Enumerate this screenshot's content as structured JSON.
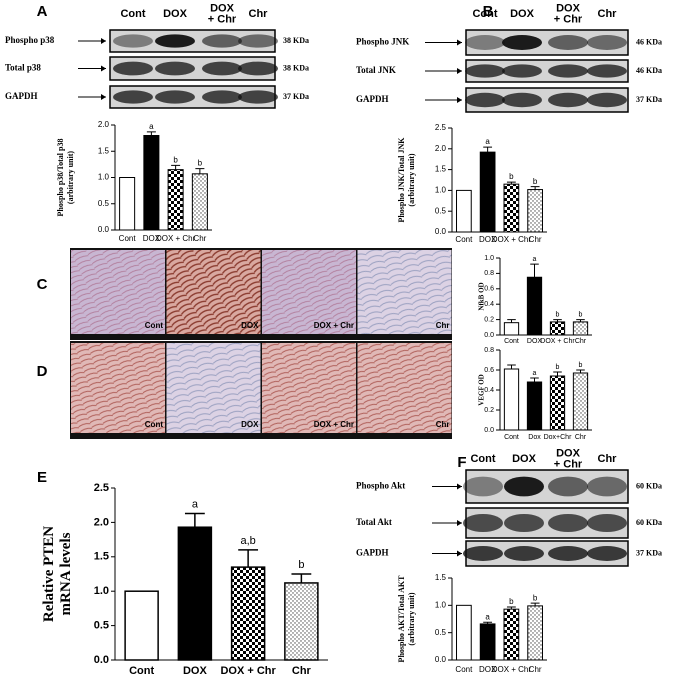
{
  "panel_letters": [
    "A",
    "B",
    "C",
    "D",
    "E",
    "F"
  ],
  "blots": [
    {
      "lanes": [
        [
          "Cont"
        ],
        [
          "DOX"
        ],
        [
          "DOX",
          "+ Chr"
        ],
        [
          "Chr"
        ]
      ],
      "rows": [
        {
          "label": "Phospho p38",
          "size": "38 KDa"
        },
        {
          "label": "Total p38",
          "size": "38 KDa"
        },
        {
          "label": "GAPDH",
          "size": "37 KDa"
        }
      ]
    },
    {
      "lanes": [
        [
          "Cont"
        ],
        [
          "DOX"
        ],
        [
          "DOX",
          "+ Chr"
        ],
        [
          "Chr"
        ]
      ],
      "rows": [
        {
          "label": "Phospho JNK",
          "size": "46 KDa"
        },
        {
          "label": "Total JNK",
          "size": "46 KDa"
        },
        {
          "label": "GAPDH",
          "size": "37 KDa"
        }
      ]
    },
    {
      "lanes": [
        [
          "Cont"
        ],
        [
          "DOX"
        ],
        [
          "DOX",
          "+ Chr"
        ],
        [
          "Chr"
        ]
      ],
      "rows": [
        {
          "label": "Phospho Akt",
          "size": "60 KDa"
        },
        {
          "label": "Total Akt",
          "size": "60 KDa"
        },
        {
          "label": "GAPDH",
          "size": "37 KDa"
        }
      ]
    }
  ],
  "micrographs": [
    {
      "labels": [
        "Cont",
        "DOX",
        "DOX + Chr",
        "Chr"
      ]
    },
    {
      "labels": [
        "Cont",
        "DOX",
        "DOX + Chr",
        "Chr"
      ]
    }
  ],
  "chart_data": [
    {
      "type": "bar",
      "y_label": [
        "Phospho p38/Total p38",
        "(arbitrary unit)"
      ],
      "categories": [
        "Cont",
        "DOX",
        "DOX + Chr",
        "Chr"
      ],
      "values": [
        1.0,
        1.8,
        1.15,
        1.07
      ],
      "errors": [
        null,
        0.07,
        0.08,
        0.1
      ],
      "annotations": [
        null,
        "a",
        "b",
        "b"
      ],
      "fills": [
        "white",
        "black",
        "checker",
        "dots"
      ],
      "ylim": [
        0,
        2.0
      ],
      "yticks": [
        {
          "value": 0,
          "label": "0.0"
        },
        {
          "value": 0.5,
          "label": "0.5"
        },
        {
          "value": 1,
          "label": "1.0"
        },
        {
          "value": 1.5,
          "label": "1.5"
        },
        {
          "value": 2,
          "label": "2.0"
        }
      ]
    },
    {
      "type": "bar",
      "y_label": [
        "Phospho JNK/Total JNK",
        "(arbitrary unit)"
      ],
      "categories": [
        "Cont",
        "DOX",
        "DOX + Chr",
        "Chr"
      ],
      "values": [
        1.0,
        1.92,
        1.15,
        1.02
      ],
      "errors": [
        null,
        0.12,
        0.05,
        0.07
      ],
      "annotations": [
        null,
        "a",
        "b",
        "b"
      ],
      "fills": [
        "white",
        "black",
        "checker",
        "dots"
      ],
      "ylim": [
        0,
        2.5
      ],
      "yticks": [
        {
          "value": 0,
          "label": "0.0"
        },
        {
          "value": 0.5,
          "label": "0.5"
        },
        {
          "value": 1,
          "label": "1.0"
        },
        {
          "value": 1.5,
          "label": "1.5"
        },
        {
          "value": 2,
          "label": "2.0"
        },
        {
          "value": 2.5,
          "label": "2.5"
        }
      ]
    },
    {
      "type": "bar",
      "y_label": [
        "NfkB OD"
      ],
      "categories": [
        "Cont",
        "DOX",
        "DOX + Chr",
        "Chr"
      ],
      "values": [
        0.16,
        0.75,
        0.17,
        0.17
      ],
      "errors": [
        0.04,
        0.17,
        0.03,
        0.03
      ],
      "annotations": [
        null,
        "a",
        "b",
        "b"
      ],
      "fills": [
        "white",
        "black",
        "checker",
        "dots"
      ],
      "ylim": [
        0,
        1.0
      ],
      "yticks": [
        {
          "value": 0,
          "label": "0.0"
        },
        {
          "value": 0.2,
          "label": "0.2"
        },
        {
          "value": 0.4,
          "label": "0.4"
        },
        {
          "value": 0.6,
          "label": "0.6"
        },
        {
          "value": 0.8,
          "label": "0.8"
        },
        {
          "value": 1,
          "label": "1.0"
        }
      ]
    },
    {
      "type": "bar",
      "y_label": [
        "VEGF OD"
      ],
      "categories": [
        "Cont",
        "Dox",
        "Dox+Chr",
        "Chr"
      ],
      "values": [
        0.61,
        0.48,
        0.54,
        0.57
      ],
      "errors": [
        0.04,
        0.04,
        0.04,
        0.03
      ],
      "annotations": [
        null,
        "a",
        "b",
        "b"
      ],
      "fills": [
        "white",
        "black",
        "checker",
        "dots"
      ],
      "ylim": [
        0,
        0.8
      ],
      "yticks": [
        {
          "value": 0,
          "label": "0.0"
        },
        {
          "value": 0.2,
          "label": "0.2"
        },
        {
          "value": 0.4,
          "label": "0.4"
        },
        {
          "value": 0.6,
          "label": "0.6"
        },
        {
          "value": 0.8,
          "label": "0.8"
        }
      ]
    },
    {
      "type": "bar",
      "y_label": [
        "Relative PTEN",
        "mRNA levels"
      ],
      "categories": [
        "Cont",
        "DOX",
        "DOX + Chr",
        "Chr"
      ],
      "values": [
        1.0,
        1.93,
        1.35,
        1.12
      ],
      "errors": [
        null,
        0.2,
        0.25,
        0.13
      ],
      "annotations": [
        null,
        "a",
        "a,b",
        "b"
      ],
      "fills": [
        "white",
        "black",
        "checker",
        "dots"
      ],
      "ylim": [
        0,
        2.5
      ],
      "yticks": [
        {
          "value": 0,
          "label": "0.0"
        },
        {
          "value": 0.5,
          "label": "0.5"
        },
        {
          "value": 1,
          "label": "1.0"
        },
        {
          "value": 1.5,
          "label": "1.5"
        },
        {
          "value": 2,
          "label": "2.0"
        },
        {
          "value": 2.5,
          "label": "2.5"
        }
      ]
    },
    {
      "type": "bar",
      "y_label": [
        "Phospho AKT/Total AKT",
        "(arbitrary unit)"
      ],
      "categories": [
        "Cont",
        "DOX",
        "DOX + Chr",
        "Chr"
      ],
      "values": [
        1.0,
        0.66,
        0.93,
        0.99
      ],
      "errors": [
        null,
        0.03,
        0.04,
        0.05
      ],
      "annotations": [
        null,
        "a",
        "b",
        "b"
      ],
      "fills": [
        "white",
        "black",
        "checker",
        "dots"
      ],
      "ylim": [
        0,
        1.5
      ],
      "yticks": [
        {
          "value": 0,
          "label": "0.0"
        },
        {
          "value": 0.5,
          "label": "0.5"
        },
        {
          "value": 1,
          "label": "1.0"
        },
        {
          "value": 1.5,
          "label": "1.5"
        }
      ]
    }
  ]
}
